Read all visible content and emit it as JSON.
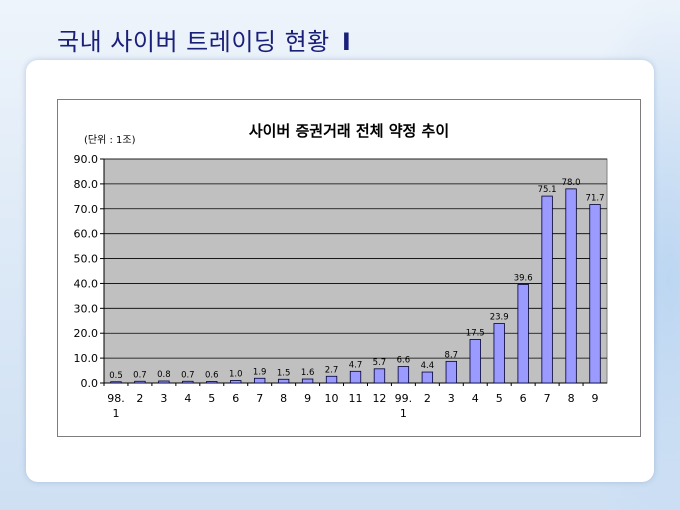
{
  "slide": {
    "title": "국내 사이버 트레이딩 현황",
    "title_suffix": "I"
  },
  "chart_data": {
    "type": "bar",
    "title": "사이버 증권거래 전체 약정 추이",
    "unit_label": "(단위 : 1조)",
    "xlabel": "",
    "ylabel": "",
    "ylim": [
      0,
      90
    ],
    "yticks": [
      0,
      10,
      20,
      30,
      40,
      50,
      60,
      70,
      80,
      90
    ],
    "ytick_labels": [
      "0.0",
      "10.0",
      "20.0",
      "30.0",
      "40.0",
      "50.0",
      "60.0",
      "70.0",
      "80.0",
      "90.0"
    ],
    "grid": true,
    "categories": [
      [
        "98.",
        "1"
      ],
      [
        "2"
      ],
      [
        "3"
      ],
      [
        "4"
      ],
      [
        "5"
      ],
      [
        "6"
      ],
      [
        "7"
      ],
      [
        "8"
      ],
      [
        "9"
      ],
      [
        "10"
      ],
      [
        "11"
      ],
      [
        "12"
      ],
      [
        "99.",
        "1"
      ],
      [
        "2"
      ],
      [
        "3"
      ],
      [
        "4"
      ],
      [
        "5"
      ],
      [
        "6"
      ],
      [
        "7"
      ],
      [
        "8"
      ],
      [
        "9"
      ]
    ],
    "values": [
      0.5,
      0.7,
      0.8,
      0.7,
      0.6,
      1.0,
      1.9,
      1.5,
      1.6,
      2.7,
      4.7,
      5.7,
      6.6,
      4.4,
      8.7,
      17.5,
      23.9,
      39.6,
      75.1,
      78.0,
      71.7
    ],
    "value_labels": [
      "0.5",
      "0.7",
      "0.8",
      "0.7",
      "0.6",
      "1.0",
      "1.9",
      "1.5",
      "1.6",
      "2.7",
      "4.7",
      "5.7",
      "6.6",
      "4.4",
      "8.7",
      "17.5",
      "23.9",
      "39.6",
      "75.1",
      "78.0",
      "71.7"
    ],
    "colors": {
      "bar_fill": "#9a9aff",
      "bar_stroke": "#000033",
      "plot_bg": "#c0c0c0",
      "gridline": "#000000"
    }
  }
}
